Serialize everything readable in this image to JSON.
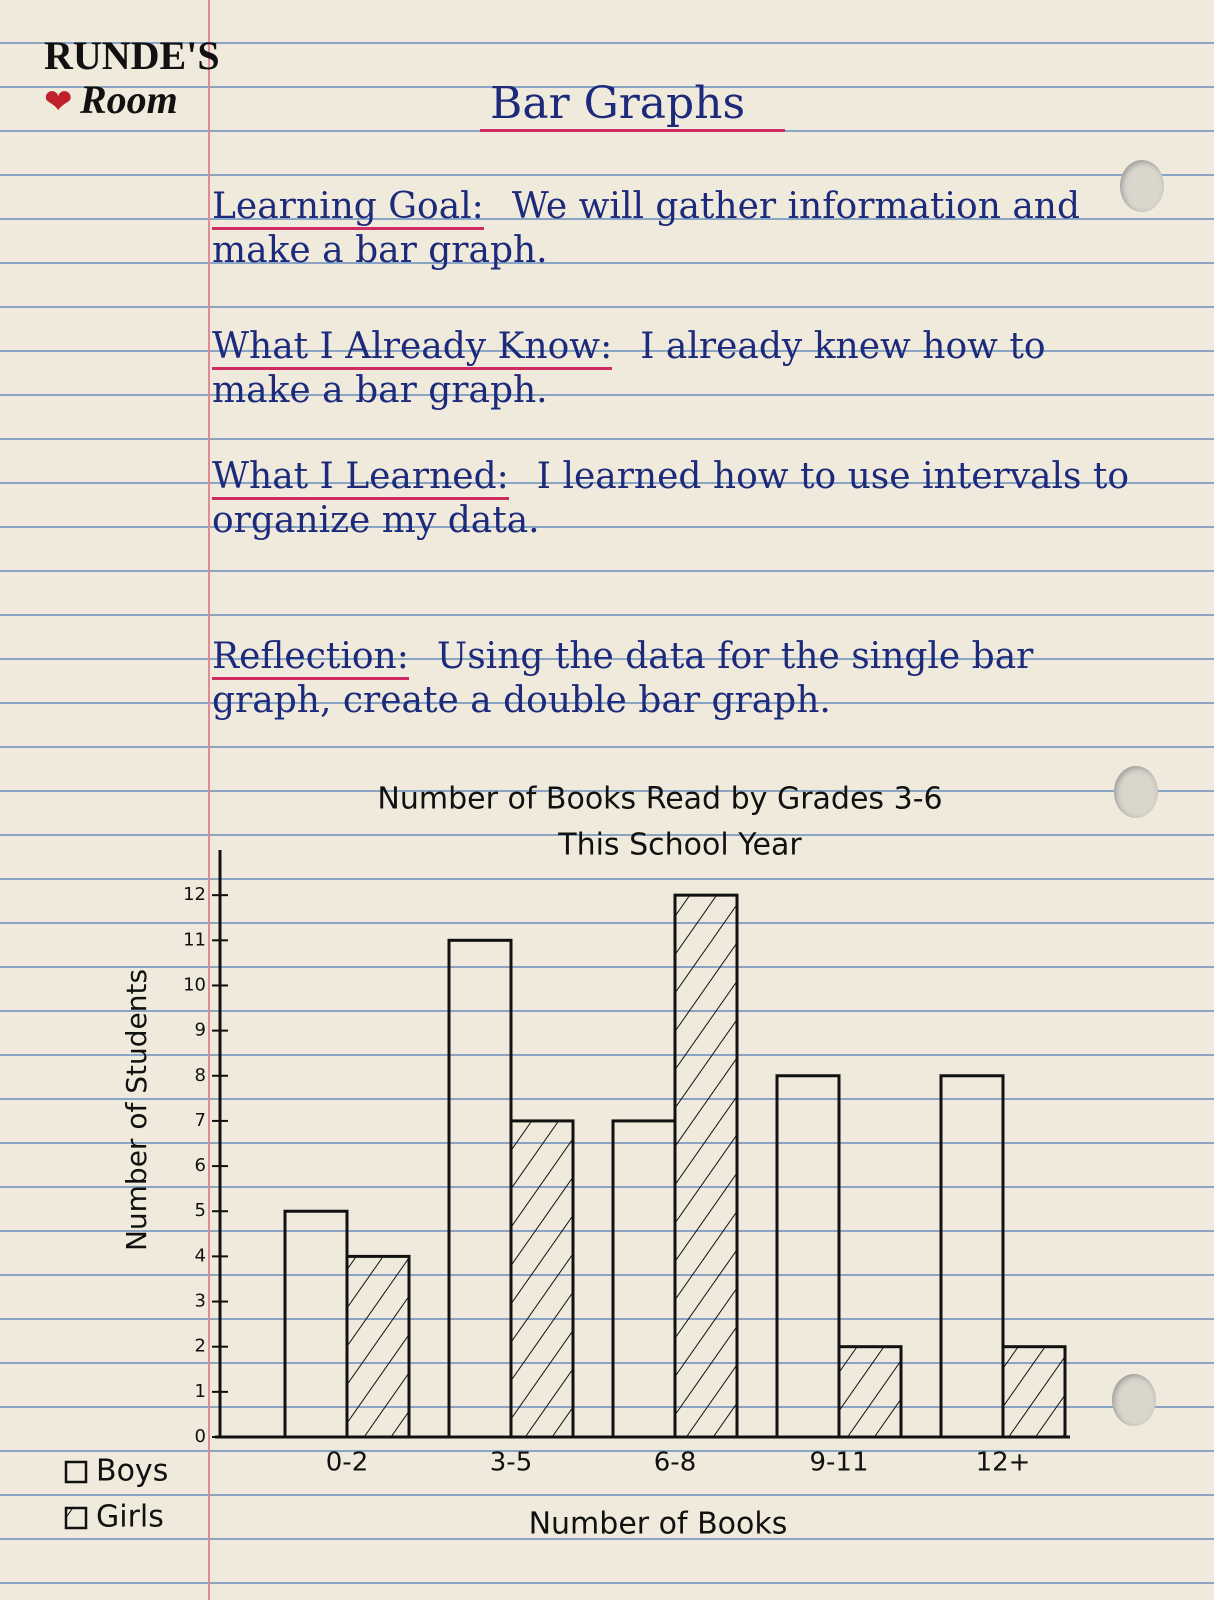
{
  "logo": {
    "line1": "RUNDE'S",
    "line2": "Room"
  },
  "heading": "Bar Graphs",
  "sections": [
    {
      "label": "Learning Goal:",
      "text": "We will gather information and make a bar graph."
    },
    {
      "label": "What I Already Know:",
      "text": "I already knew how to make a bar graph."
    },
    {
      "label": "What I Learned:",
      "text": "I learned how to use intervals to organize my data."
    },
    {
      "label": "Reflection:",
      "text": "Using the data for the single bar graph, create a double bar graph."
    }
  ],
  "chart_data": {
    "type": "bar",
    "title": "Number of Books Read by Grades 3-6",
    "subtitle": "This School Year",
    "x_label": "Number of Books",
    "y_label": "Number of Students",
    "categories": [
      "0-2",
      "3-5",
      "6-8",
      "9-11",
      "12+"
    ],
    "series": [
      {
        "name": "Boys",
        "color": "#111111",
        "hatch": false,
        "values": [
          5,
          11,
          7,
          8,
          8
        ]
      },
      {
        "name": "Girls",
        "color": "#111111",
        "hatch": true,
        "values": [
          4,
          7,
          12,
          2,
          2
        ]
      }
    ],
    "ylim": [
      0,
      13
    ],
    "yticks": [
      0,
      1,
      2,
      3,
      4,
      5,
      6,
      7,
      8,
      9,
      10,
      11,
      12
    ],
    "legend": "bottom-left"
  }
}
